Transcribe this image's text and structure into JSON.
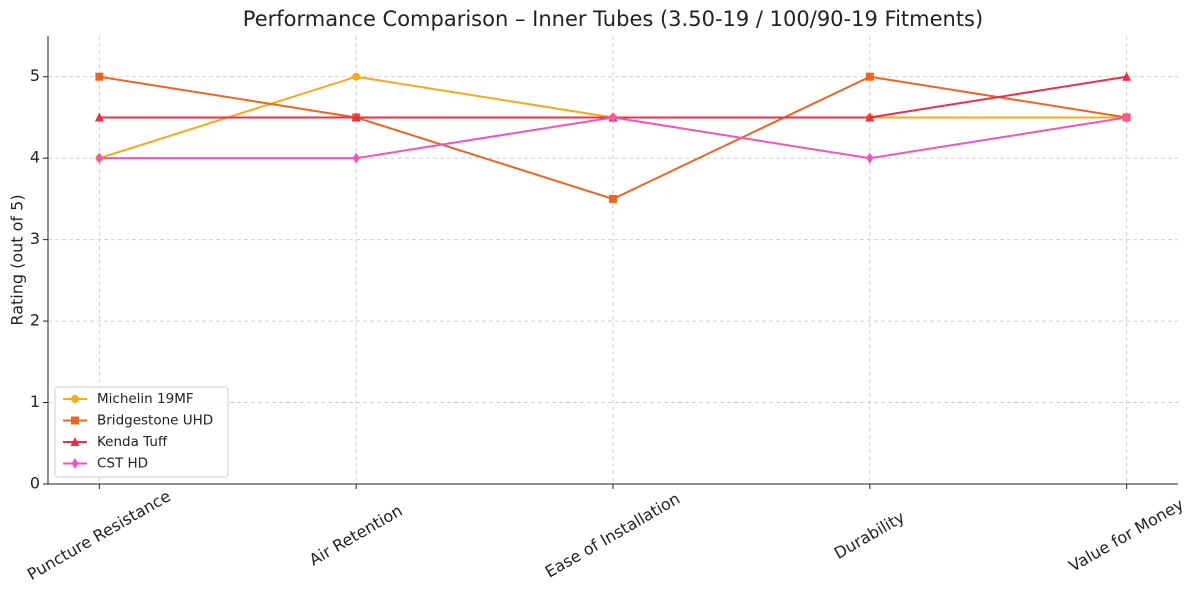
{
  "chart_data": {
    "type": "line",
    "title": "Performance Comparison – Inner Tubes (3.50-19 / 100/90-19 Fitments)",
    "y_label": "Rating (out of 5)",
    "categories": [
      "Puncture Resistance",
      "Air Retention",
      "Ease of Installation",
      "Durability",
      "Value for Money"
    ],
    "series": [
      {
        "name": "Michelin 19MF",
        "color": "#f7a81b",
        "marker": "circle",
        "values": [
          4,
          5,
          4.5,
          4.5,
          4.5
        ]
      },
      {
        "name": "Bridgestone UHD",
        "color": "#ec6523",
        "marker": "square",
        "values": [
          5,
          4.5,
          3.5,
          5,
          4.5
        ]
      },
      {
        "name": "Kenda Tuff",
        "color": "#e8304a",
        "marker": "triangle",
        "values": [
          4.5,
          4.5,
          4.5,
          4.5,
          5
        ]
      },
      {
        "name": "CST HD",
        "color": "#ef55bf",
        "marker": "diamond",
        "values": [
          4,
          4,
          4.5,
          4,
          4.5
        ]
      }
    ],
    "ylim": [
      0,
      5.5
    ],
    "yticks": [
      0,
      1,
      2,
      3,
      4,
      5
    ],
    "grid": true,
    "legend": "lower left"
  }
}
